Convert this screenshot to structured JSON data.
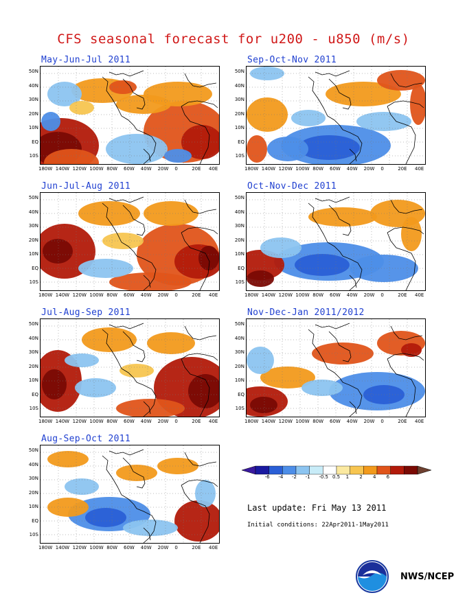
{
  "title": "CFS seasonal forecast for u200 - u850 (m/s)",
  "panels": [
    {
      "title": "May-Jun-Jul 2011"
    },
    {
      "title": "Sep-Oct-Nov 2011"
    },
    {
      "title": "Jun-Jul-Aug 2011"
    },
    {
      "title": "Oct-Nov-Dec 2011"
    },
    {
      "title": "Jul-Aug-Sep 2011"
    },
    {
      "title": "Nov-Dec-Jan 2011/2012"
    },
    {
      "title": "Aug-Sep-Oct 2011"
    }
  ],
  "lat_ticks": [
    "50N",
    "40N",
    "30N",
    "20N",
    "10N",
    "EQ",
    "10S"
  ],
  "lon_ticks": [
    "180W",
    "140W",
    "120W",
    "100W",
    "80W",
    "60W",
    "40W",
    "20W",
    "0",
    "20E",
    "40E"
  ],
  "colorbar": {
    "labels": [
      "-6",
      "-4",
      "-2",
      "-1",
      "-0.5",
      "0.5",
      "1",
      "2",
      "4",
      "6"
    ],
    "colors": [
      "#1a1aa0",
      "#2a5fd6",
      "#4d8ee8",
      "#8cc4f0",
      "#c8ecf8",
      "#ffffff",
      "#fbe9a0",
      "#f7c550",
      "#f29a1c",
      "#e0541a",
      "#b21a0a",
      "#7a0a04"
    ],
    "left_cap": "#3a1aa0",
    "right_cap": "#6e4030"
  },
  "last_update": "Last update: Fri May 13 2011",
  "initial_conditions": "Initial conditions: 22Apr2011-1May2011",
  "agency": "NWS/NCEP"
}
